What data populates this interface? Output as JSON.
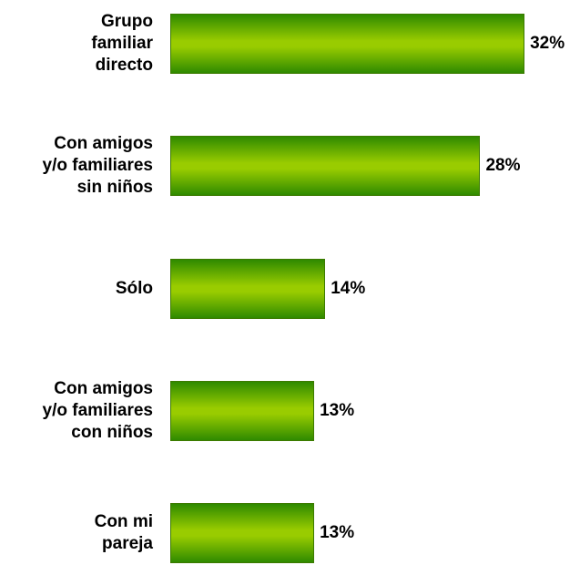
{
  "chart_data": {
    "type": "bar",
    "categories": [
      "Grupo\nfamiliar\ndirecto",
      "Con amigos\ny/o familiares\nsin niños",
      "Sólo",
      "Con amigos\ny/o familiares\ncon niños",
      "Con mi\npareja"
    ],
    "values": [
      32,
      28,
      14,
      13,
      13
    ],
    "value_labels": [
      "32%",
      "28%",
      "14%",
      "13%",
      "13%"
    ],
    "color": "#99cc00"
  }
}
